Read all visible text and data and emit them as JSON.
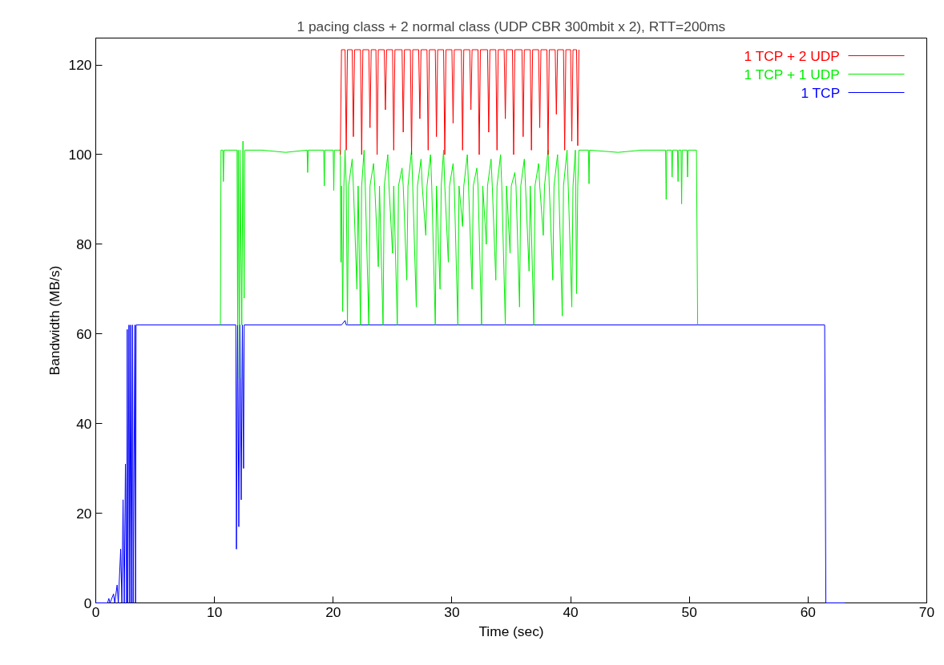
{
  "chart_data": {
    "type": "line",
    "title": "1 pacing class + 2 normal class (UDP CBR 300mbit x 2), RTT=200ms",
    "xlabel": "Time (sec)",
    "ylabel": "Bandwidth (MB/s)",
    "xlim": [
      0,
      70
    ],
    "xticks": [
      0,
      10,
      20,
      30,
      40,
      50,
      60,
      70
    ],
    "ylim": [
      0,
      126
    ],
    "yticks": [
      0,
      20,
      40,
      60,
      80,
      100,
      120
    ],
    "grid": false,
    "legend": "top right",
    "line_style": "solid",
    "marker": "none",
    "series": [
      {
        "name": "1 TCP + 2 UDP",
        "color": "#ff0000",
        "x": [
          20.6,
          20.7,
          21.0,
          21.1,
          21.2,
          21.6,
          21.7,
          21.8,
          22.3,
          22.4,
          22.5,
          23.0,
          23.1,
          23.2,
          23.6,
          23.7,
          23.8,
          24.3,
          24.4,
          24.5,
          25.0,
          25.1,
          25.2,
          25.8,
          25.9,
          26.0,
          26.5,
          26.6,
          26.7,
          27.2,
          27.3,
          27.4,
          27.9,
          28.0,
          28.1,
          28.6,
          28.7,
          28.8,
          29.3,
          29.4,
          29.5,
          30.0,
          30.1,
          30.2,
          30.8,
          30.9,
          31.0,
          31.5,
          31.6,
          31.7,
          32.2,
          32.3,
          32.4,
          33.0,
          33.1,
          33.2,
          33.7,
          33.8,
          33.9,
          34.4,
          34.5,
          34.6,
          35.1,
          35.2,
          35.3,
          35.9,
          36.0,
          36.1,
          36.6,
          36.7,
          36.8,
          37.3,
          37.4,
          37.5,
          38.0,
          38.1,
          38.2,
          38.7,
          38.8,
          38.9,
          39.4,
          39.5,
          39.6,
          40.0,
          40.1,
          40.2,
          40.5,
          40.6,
          40.7
        ],
        "values": [
          100,
          123.4,
          123.4,
          101,
          123.4,
          123.4,
          104,
          123.4,
          123.4,
          100,
          123.4,
          123.4,
          106,
          123.4,
          123.4,
          100,
          123.4,
          123.4,
          110,
          123.4,
          123.4,
          101,
          123.4,
          123.4,
          105,
          123.4,
          123.4,
          100,
          123.4,
          123.4,
          108,
          123.4,
          123.4,
          101,
          123.4,
          123.4,
          104,
          123.4,
          123.4,
          100,
          123.4,
          123.4,
          107,
          123.4,
          123.4,
          101,
          123.4,
          123.4,
          110,
          123.4,
          123.4,
          100,
          123.4,
          123.4,
          105,
          123.4,
          123.4,
          101,
          123.4,
          123.4,
          108,
          123.4,
          123.4,
          100,
          123.4,
          123.4,
          104,
          123.4,
          123.4,
          101,
          123.4,
          123.4,
          106,
          123.4,
          123.4,
          100,
          123.4,
          123.4,
          109,
          123.4,
          123.4,
          101,
          123.4,
          123.4,
          103,
          123.4,
          123.4,
          102,
          123.4
        ]
      },
      {
        "name": "1 TCP + 1 UDP",
        "color": "#00ee00",
        "x": [
          10.5,
          10.55,
          10.7,
          10.75,
          10.8,
          11.9,
          11.95,
          12.0,
          12.1,
          12.15,
          12.3,
          12.4,
          12.5,
          12.55,
          14,
          16,
          17.8,
          17.85,
          17.9,
          19.2,
          19.25,
          19.3,
          20.0,
          20.05,
          20.1,
          20.6,
          20.65,
          20.7,
          20.8,
          20.9,
          21.0,
          21.1,
          21.2,
          21.3,
          21.6,
          21.7,
          22.0,
          22.1,
          22.3,
          22.4,
          22.6,
          22.7,
          23.0,
          23.1,
          23.4,
          23.5,
          23.8,
          23.9,
          24.2,
          24.3,
          24.6,
          24.7,
          25.0,
          25.1,
          25.4,
          25.5,
          25.8,
          25.9,
          26.2,
          26.3,
          26.6,
          26.7,
          27.0,
          27.1,
          27.4,
          27.5,
          27.8,
          27.9,
          28.2,
          28.3,
          28.6,
          28.7,
          29.0,
          29.1,
          29.3,
          29.4,
          29.7,
          29.8,
          30.1,
          30.2,
          30.5,
          30.6,
          30.9,
          31.0,
          31.3,
          31.4,
          31.7,
          31.8,
          32.1,
          32.2,
          32.5,
          32.6,
          32.9,
          33.0,
          33.3,
          33.4,
          33.7,
          33.8,
          34.1,
          34.2,
          34.5,
          34.6,
          34.9,
          35.0,
          35.3,
          35.4,
          35.7,
          35.8,
          36.1,
          36.2,
          36.5,
          36.6,
          36.9,
          37.0,
          37.3,
          37.4,
          37.7,
          37.8,
          38.1,
          38.2,
          38.5,
          38.6,
          38.9,
          39.0,
          39.3,
          39.4,
          39.7,
          39.8,
          40.1,
          40.2,
          40.4,
          40.5,
          40.6,
          40.7,
          41.5,
          41.55,
          41.6,
          44,
          46,
          48.0,
          48.05,
          48.1,
          48.5,
          48.55,
          48.6,
          49.0,
          49.05,
          49.1,
          49.3,
          49.35,
          49.4,
          49.8,
          49.85,
          49.9,
          50.6,
          50.7
        ],
        "values": [
          62,
          101,
          101,
          94,
          101,
          101,
          62,
          101,
          50,
          101,
          62,
          103,
          68,
          101,
          101,
          100.5,
          101,
          96,
          101,
          101,
          93,
          101,
          101,
          92,
          101,
          101,
          76,
          93,
          65,
          93,
          101,
          93,
          62,
          93,
          99,
          93,
          70,
          93,
          62,
          93,
          101,
          93,
          62,
          93,
          98,
          93,
          75,
          93,
          62,
          93,
          100,
          93,
          78,
          93,
          62,
          93,
          97,
          93,
          72,
          93,
          101,
          93,
          66,
          93,
          99,
          93,
          82,
          93,
          100,
          93,
          62,
          93,
          70,
          93,
          101,
          93,
          76,
          93,
          98,
          93,
          62,
          93,
          84,
          93,
          100,
          93,
          70,
          93,
          97,
          93,
          62,
          93,
          80,
          93,
          99,
          93,
          72,
          93,
          100,
          93,
          62,
          93,
          78,
          93,
          96,
          93,
          66,
          93,
          99,
          93,
          74,
          93,
          62,
          93,
          98,
          93,
          82,
          93,
          101,
          93,
          72,
          93,
          100,
          93,
          64,
          93,
          101,
          93,
          66,
          93,
          101,
          69,
          93,
          101,
          101,
          93.5,
          101,
          100.5,
          101,
          101,
          90,
          101,
          101,
          95,
          101,
          101,
          94,
          101,
          101,
          89,
          101,
          101,
          95,
          101,
          101,
          62
        ]
      },
      {
        "name": "1 TCP",
        "color": "#0000ff",
        "x": [
          0,
          1.0,
          1.1,
          1.2,
          1.5,
          1.6,
          1.8,
          1.9,
          2.1,
          2.2,
          2.3,
          2.4,
          2.5,
          2.6,
          2.65,
          2.7,
          2.8,
          2.85,
          2.95,
          3.0,
          3.1,
          3.15,
          3.3,
          3.35,
          3.4,
          11.8,
          11.85,
          11.95,
          12.05,
          12.15,
          12.25,
          12.35,
          12.45,
          12.5,
          20.7,
          21.0,
          21.1,
          61.4,
          61.5,
          63.1
        ],
        "values": [
          0,
          0,
          1,
          0,
          2,
          0,
          4,
          0,
          12,
          0,
          23,
          0,
          31,
          0,
          61,
          0,
          62,
          0,
          62,
          0,
          62,
          0,
          62,
          0,
          62,
          62,
          12,
          62,
          17,
          62,
          23,
          62,
          30,
          62,
          62,
          63,
          62,
          62,
          0,
          0
        ]
      }
    ]
  }
}
